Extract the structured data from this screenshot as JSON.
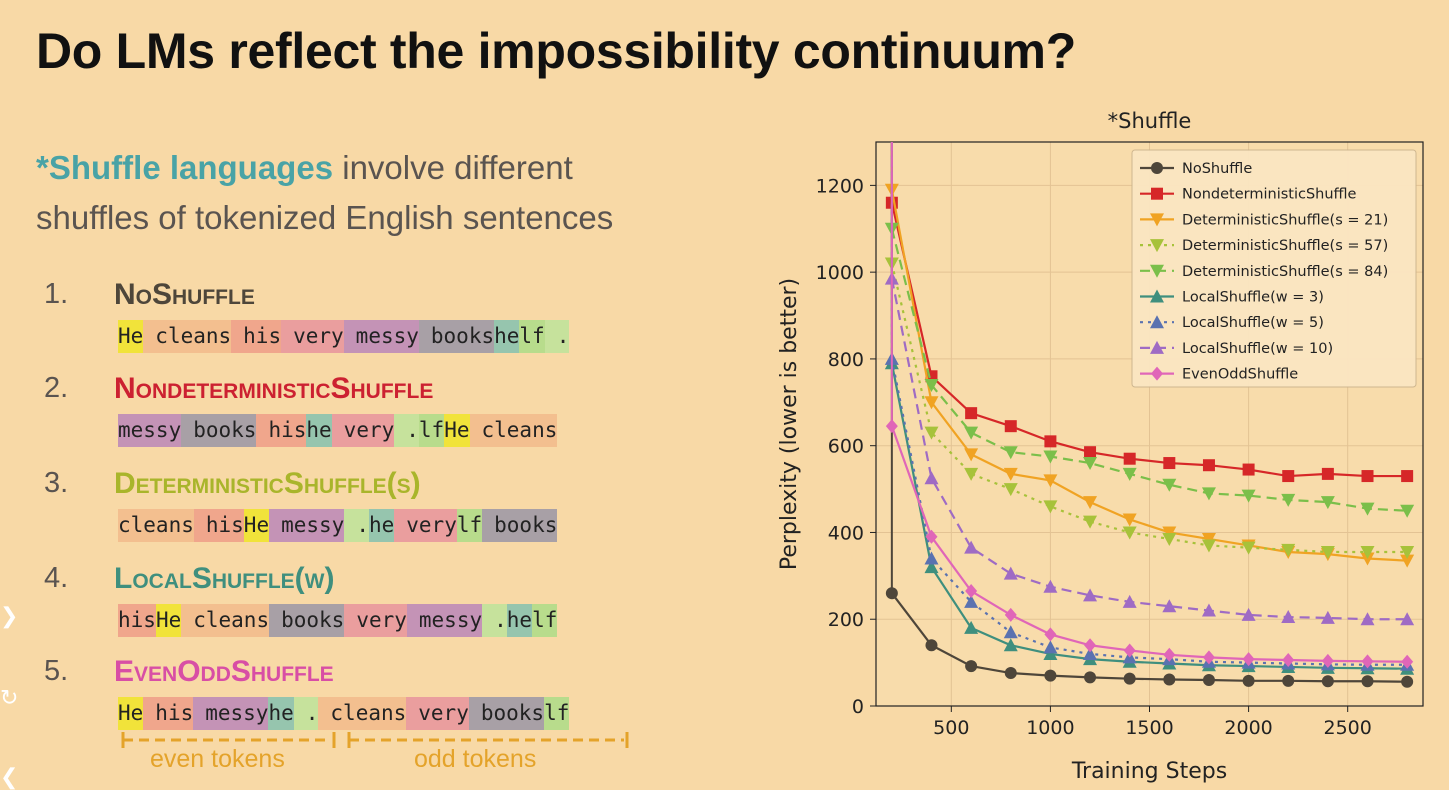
{
  "title": "Do LMs reflect the impossibility continuum?",
  "intro": {
    "highlight": "*Shuffle languages",
    "rest_line1": " involve different",
    "line2": "shuffles of tokenized English sentences"
  },
  "colors": {
    "teal": "#49a3a6",
    "red": "#cc2131",
    "olive": "#a9b52b",
    "tealgreen": "#3f8f7e",
    "pink": "#d84ea5",
    "orange": "#e4a32a"
  },
  "token_colors": {
    "He": "#f1e33a",
    "cleans": "#f3bf8f",
    "his": "#f0a68c",
    "very": "#ea9e9e",
    "messy": "#c493b6",
    "books": "#a8a0a6",
    "he": "#96c5ae",
    "lf": "#b8dc8c",
    ".": "#c6e29c"
  },
  "items": [
    {
      "num": "1.",
      "name": "NoShuffle",
      "color": "#4e463a",
      "tokens": [
        "He",
        "cleans",
        "his",
        "very",
        "messy",
        "books",
        "he",
        "lf",
        "."
      ]
    },
    {
      "num": "2.",
      "name": "NondeterministicShuffle",
      "color": "#cc2131",
      "tokens": [
        "messy",
        "books",
        "his",
        "he",
        "very",
        ".",
        "lf",
        "He",
        "cleans"
      ]
    },
    {
      "num": "3.",
      "name": "DeterministicShuffle(s)",
      "color": "#a9b52b",
      "tokens": [
        "cleans",
        "his",
        "He",
        "messy",
        ".",
        "he",
        "very",
        "lf",
        "books"
      ]
    },
    {
      "num": "4.",
      "name": "LocalShuffle(w)",
      "color": "#3f8f7e",
      "tokens": [
        "his",
        "He",
        "cleans",
        "books",
        "very",
        "messy",
        ".",
        "he",
        "lf"
      ]
    },
    {
      "num": "5.",
      "name": "EvenOddShuffle",
      "color": "#d84ea5",
      "tokens": [
        "He",
        "his",
        "messy",
        "he",
        ".",
        "cleans",
        "very",
        "books",
        "lf"
      ]
    }
  ],
  "bracket": {
    "even_label": "even tokens",
    "odd_label": "odd tokens"
  },
  "chart_data": {
    "type": "line",
    "title": "*Shuffle",
    "xlabel": "Training Steps",
    "ylabel": "Perplexity (lower is better)",
    "xlim": [
      120,
      2880
    ],
    "ylim": [
      0,
      1300
    ],
    "xticks": [
      500,
      1000,
      1500,
      2000,
      2500
    ],
    "yticks": [
      0,
      200,
      400,
      600,
      800,
      1000,
      1200
    ],
    "grid": true,
    "legend_position": "top-right",
    "x": [
      200,
      400,
      600,
      800,
      1000,
      1200,
      1400,
      1600,
      1800,
      2000,
      2200,
      2400,
      2600,
      2800
    ],
    "series": [
      {
        "name": "NoShuffle",
        "color": "#4e463a",
        "marker": "circle",
        "dash": "solid",
        "values": [
          260,
          140,
          92,
          76,
          70,
          66,
          63,
          61,
          60,
          58,
          58,
          57,
          57,
          56
        ]
      },
      {
        "name": "NondeterministicShuffle",
        "color": "#d62728",
        "marker": "square",
        "dash": "solid",
        "values": [
          1160,
          760,
          675,
          645,
          610,
          585,
          570,
          560,
          555,
          545,
          530,
          535,
          530,
          530
        ]
      },
      {
        "name": "DeterministicShuffle(s = 21)",
        "color": "#f0a323",
        "marker": "triangle-down",
        "dash": "solid",
        "values": [
          1190,
          700,
          580,
          535,
          520,
          470,
          430,
          400,
          385,
          370,
          355,
          350,
          340,
          335
        ]
      },
      {
        "name": "DeterministicShuffle(s = 57)",
        "color": "#a7c23a",
        "marker": "triangle-down",
        "dash": "dotted",
        "values": [
          1020,
          630,
          535,
          500,
          460,
          425,
          400,
          385,
          370,
          365,
          360,
          355,
          355,
          355
        ]
      },
      {
        "name": "DeterministicShuffle(s = 84)",
        "color": "#7bbf4a",
        "marker": "triangle-down",
        "dash": "dashed",
        "values": [
          1100,
          740,
          630,
          585,
          575,
          560,
          535,
          510,
          490,
          485,
          475,
          470,
          455,
          450
        ]
      },
      {
        "name": "LocalShuffle(w = 3)",
        "color": "#3f8f7e",
        "marker": "triangle-up",
        "dash": "solid",
        "values": [
          790,
          320,
          180,
          140,
          120,
          108,
          102,
          98,
          94,
          92,
          90,
          88,
          87,
          86
        ]
      },
      {
        "name": "LocalShuffle(w = 5)",
        "color": "#5a72b0",
        "marker": "triangle-up",
        "dash": "dotted",
        "values": [
          800,
          340,
          240,
          170,
          135,
          120,
          112,
          108,
          102,
          100,
          98,
          96,
          95,
          95
        ]
      },
      {
        "name": "LocalShuffle(w = 10)",
        "color": "#9f6bc4",
        "marker": "triangle-up",
        "dash": "dashed",
        "values": [
          985,
          525,
          365,
          305,
          275,
          255,
          240,
          230,
          220,
          210,
          205,
          203,
          200,
          200
        ]
      },
      {
        "name": "EvenOddShuffle",
        "color": "#e066b8",
        "marker": "diamond",
        "dash": "solid",
        "values": [
          645,
          390,
          265,
          210,
          165,
          140,
          128,
          118,
          112,
          108,
          106,
          104,
          103,
          102
        ]
      }
    ]
  }
}
